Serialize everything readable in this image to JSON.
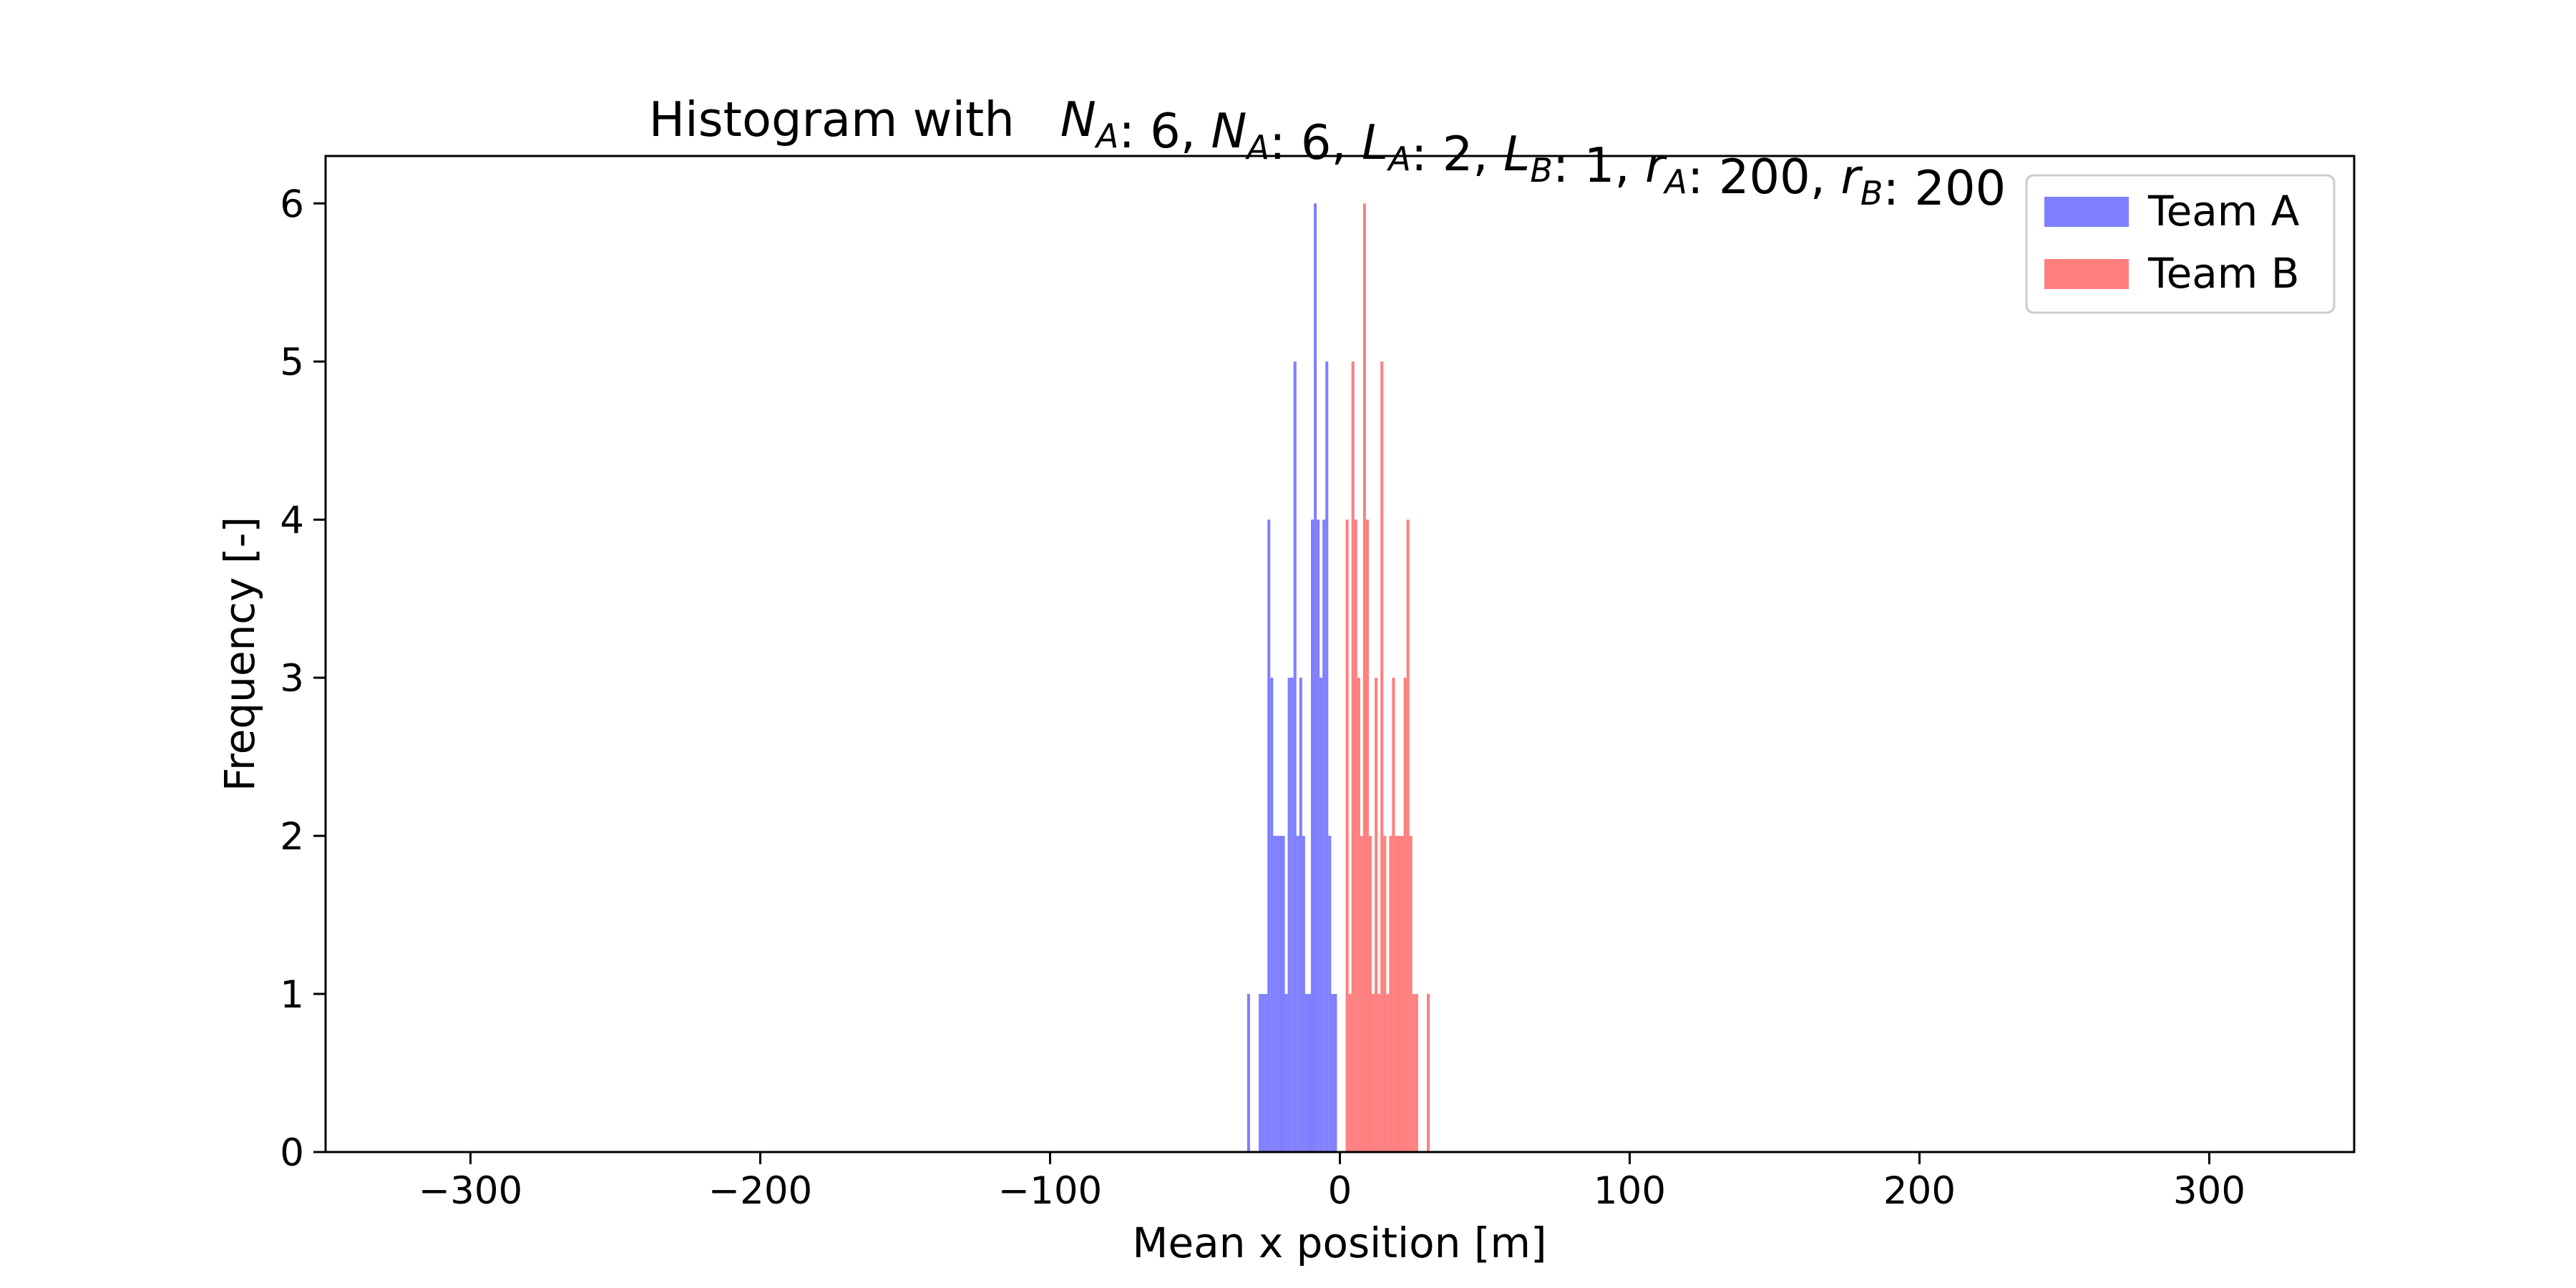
{
  "chart_data": {
    "type": "bar",
    "title": {
      "prefix": "Histogram with",
      "formula_parts": [
        {
          "text": "N",
          "italic": true
        },
        {
          "text": "A",
          "italic": true,
          "sub": true
        },
        {
          "text": ": 6, ",
          "italic": false
        },
        {
          "text": "N",
          "italic": true
        },
        {
          "text": "A",
          "italic": true,
          "sub": true
        },
        {
          "text": ": 6, ",
          "italic": false
        },
        {
          "text": "L",
          "italic": true
        },
        {
          "text": "A",
          "italic": true,
          "sub": true
        },
        {
          "text": ": 2, ",
          "italic": false
        },
        {
          "text": "L",
          "italic": true
        },
        {
          "text": "B",
          "italic": true,
          "sub": true
        },
        {
          "text": ": 1, ",
          "italic": false
        },
        {
          "text": "r",
          "italic": true
        },
        {
          "text": "A",
          "italic": true,
          "sub": true
        },
        {
          "text": ": 200, ",
          "italic": false
        },
        {
          "text": "r",
          "italic": true
        },
        {
          "text": "B",
          "italic": true,
          "sub": true
        },
        {
          "text": ": 200",
          "italic": false
        }
      ]
    },
    "xlabel": "Mean x position [m]",
    "ylabel": "Frequency [-]",
    "xlim": [
      -350,
      350
    ],
    "ylim": [
      0,
      6.3
    ],
    "xticks": [
      -300,
      -200,
      -100,
      0,
      100,
      200,
      300
    ],
    "xtick_labels": [
      "−300",
      "−200",
      "−100",
      "0",
      "100",
      "200",
      "300"
    ],
    "yticks": [
      0,
      1,
      2,
      3,
      4,
      5,
      6
    ],
    "ytick_labels": [
      "0",
      "1",
      "2",
      "3",
      "4",
      "5",
      "6"
    ],
    "grid": false,
    "legend_position": "top-right",
    "bin_width": 1,
    "series": [
      {
        "name": "Team A",
        "color": "#7f7fff",
        "bins": [
          [
            -32,
            1
          ],
          [
            -28,
            1
          ],
          [
            -27,
            1
          ],
          [
            -26,
            1
          ],
          [
            -25,
            4
          ],
          [
            -24,
            3
          ],
          [
            -23,
            2
          ],
          [
            -22,
            2
          ],
          [
            -21,
            2
          ],
          [
            -20,
            2
          ],
          [
            -19,
            1
          ],
          [
            -18,
            3
          ],
          [
            -17,
            3
          ],
          [
            -16,
            5
          ],
          [
            -15,
            2
          ],
          [
            -14,
            3
          ],
          [
            -13,
            2
          ],
          [
            -12,
            1
          ],
          [
            -11,
            1
          ],
          [
            -10,
            4
          ],
          [
            -9,
            6
          ],
          [
            -8,
            4
          ],
          [
            -7,
            3
          ],
          [
            -6,
            4
          ],
          [
            -5,
            5
          ],
          [
            -4,
            2
          ],
          [
            -3,
            1
          ],
          [
            -2,
            1
          ]
        ]
      },
      {
        "name": "Team B",
        "color": "#ff7f7f",
        "bins": [
          [
            2,
            4
          ],
          [
            3,
            1
          ],
          [
            4,
            5
          ],
          [
            5,
            4
          ],
          [
            6,
            3
          ],
          [
            7,
            2
          ],
          [
            8,
            6
          ],
          [
            9,
            4
          ],
          [
            10,
            2
          ],
          [
            11,
            1
          ],
          [
            12,
            3
          ],
          [
            13,
            1
          ],
          [
            14,
            5
          ],
          [
            15,
            2
          ],
          [
            16,
            1
          ],
          [
            17,
            2
          ],
          [
            18,
            3
          ],
          [
            19,
            2
          ],
          [
            20,
            2
          ],
          [
            21,
            2
          ],
          [
            22,
            3
          ],
          [
            23,
            4
          ],
          [
            24,
            2
          ],
          [
            25,
            1
          ],
          [
            26,
            1
          ],
          [
            30,
            1
          ]
        ]
      }
    ]
  }
}
